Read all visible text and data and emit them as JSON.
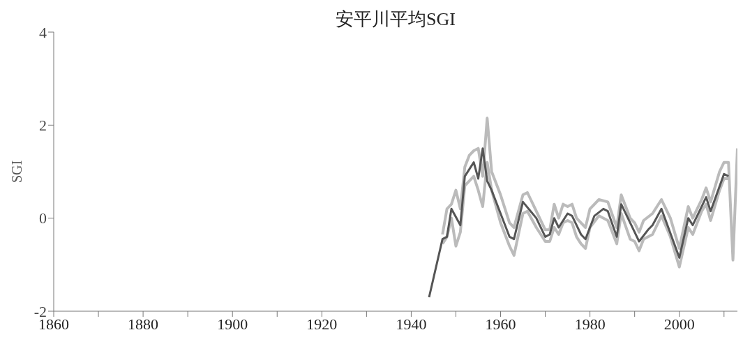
{
  "chart_data": {
    "type": "line",
    "title": "安平川平均SGI",
    "ylabel": "SGI",
    "xlim": [
      1860,
      2013
    ],
    "ylim": [
      -2,
      4
    ],
    "xticks": [
      1860,
      {
        "value": 1870,
        "label": null
      },
      1880,
      {
        "value": 1890,
        "label": null
      },
      1900,
      {
        "value": 1910,
        "label": null
      },
      1920,
      {
        "value": 1930,
        "label": null
      },
      1940,
      {
        "value": 1950,
        "label": null
      },
      1960,
      {
        "value": 1970,
        "label": null
      },
      1980,
      {
        "value": 1990,
        "label": null
      },
      2000,
      {
        "value": 2010,
        "label": null
      }
    ],
    "yticks": [
      -2,
      0,
      2,
      4
    ],
    "line_style": "solid",
    "series": [
      {
        "color": "#bbbbbb",
        "x": [
          1947,
          1948,
          1949,
          1950,
          1951,
          1952,
          1953,
          1954,
          1955,
          1956,
          1957,
          1958,
          1960,
          1962,
          1963,
          1965,
          1966,
          1968,
          1970,
          1971,
          1972,
          1973,
          1974,
          1975,
          1976,
          1977,
          1978,
          1979,
          1980,
          1982,
          1984,
          1986,
          1987,
          1989,
          1990,
          1991,
          1992,
          1994,
          1996,
          1998,
          2000,
          2002,
          2003,
          2005,
          2006,
          2007,
          2009,
          2010,
          2011,
          2012,
          2013
        ],
        "values": [
          -0.35,
          0.2,
          0.3,
          0.6,
          0.2,
          1.1,
          1.35,
          1.45,
          1.5,
          0.9,
          2.15,
          1.0,
          0.5,
          -0.1,
          -0.2,
          0.5,
          0.55,
          0.15,
          -0.25,
          -0.25,
          0.3,
          0.0,
          0.3,
          0.25,
          0.3,
          0.0,
          -0.1,
          -0.2,
          0.2,
          0.4,
          0.35,
          -0.2,
          0.5,
          0.0,
          -0.1,
          -0.3,
          -0.05,
          0.1,
          0.4,
          0.0,
          -0.65,
          0.25,
          0.0,
          0.4,
          0.65,
          0.35,
          1.0,
          1.2,
          1.2,
          -0.9,
          1.5
        ]
      },
      {
        "color": "#bbbbbb",
        "x": [
          1947,
          1948,
          1949,
          1950,
          1951,
          1952,
          1953,
          1954,
          1955,
          1956,
          1957,
          1958,
          1960,
          1962,
          1963,
          1965,
          1966,
          1968,
          1970,
          1971,
          1972,
          1973,
          1974,
          1975,
          1976,
          1977,
          1978,
          1979,
          1980,
          1982,
          1984,
          1986,
          1987,
          1989,
          1990,
          1991,
          1992,
          1994,
          1996,
          1998,
          2000,
          2002,
          2003,
          2005,
          2006,
          2007,
          2009,
          2010,
          2011
        ],
        "values": [
          -0.55,
          -0.4,
          0.0,
          -0.6,
          -0.3,
          0.7,
          0.8,
          0.9,
          0.6,
          0.25,
          1.2,
          0.6,
          -0.1,
          -0.6,
          -0.8,
          0.1,
          0.15,
          -0.2,
          -0.5,
          -0.5,
          -0.2,
          -0.35,
          -0.1,
          -0.05,
          -0.1,
          -0.4,
          -0.55,
          -0.65,
          -0.2,
          0.05,
          -0.05,
          -0.55,
          0.1,
          -0.45,
          -0.5,
          -0.7,
          -0.45,
          -0.35,
          0.05,
          -0.4,
          -1.05,
          -0.2,
          -0.35,
          0.15,
          0.3,
          -0.05,
          0.6,
          0.85,
          0.85
        ]
      },
      {
        "color": "#555555",
        "x": [
          1944,
          1947,
          1948,
          1949,
          1951,
          1952,
          1954,
          1955,
          1956,
          1957,
          1958,
          1962,
          1963,
          1965,
          1968,
          1970,
          1971,
          1972,
          1973,
          1975,
          1976,
          1978,
          1979,
          1981,
          1983,
          1984,
          1986,
          1987,
          1990,
          1991,
          1993,
          1994,
          1996,
          2000,
          2002,
          2003,
          2006,
          2007,
          2010,
          2011
        ],
        "values": [
          -1.7,
          -0.45,
          -0.4,
          0.2,
          -0.15,
          0.9,
          1.2,
          0.85,
          1.5,
          0.8,
          0.6,
          -0.4,
          -0.45,
          0.35,
          0.0,
          -0.4,
          -0.35,
          0.0,
          -0.2,
          0.1,
          0.05,
          -0.35,
          -0.45,
          0.05,
          0.2,
          0.15,
          -0.4,
          0.3,
          -0.3,
          -0.5,
          -0.25,
          -0.15,
          0.2,
          -0.85,
          0.0,
          -0.15,
          0.45,
          0.15,
          0.95,
          0.9
        ]
      }
    ]
  }
}
